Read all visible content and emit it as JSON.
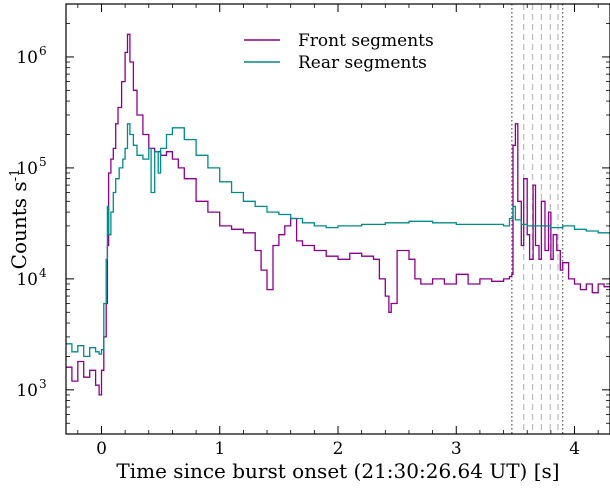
{
  "chart_data": {
    "type": "line",
    "xlabel": "Time since burst onset (21:30:26.64 UT) [s]",
    "ylabel": "Counts s",
    "ylabel_superscript": "-1",
    "x_scale": "linear",
    "y_scale": "log",
    "xlim": [
      -0.3,
      4.3
    ],
    "ylim": [
      400,
      3000000
    ],
    "x_ticks": [
      0,
      1,
      2,
      3,
      4
    ],
    "x_tick_labels": [
      "0",
      "1",
      "2",
      "3",
      "4"
    ],
    "y_ticks": [
      1000,
      10000,
      100000,
      1000000
    ],
    "y_tick_labels": [
      {
        "base": "10",
        "exp": "3"
      },
      {
        "base": "10",
        "exp": "4"
      },
      {
        "base": "10",
        "exp": "5"
      },
      {
        "base": "10",
        "exp": "6"
      }
    ],
    "legend_position": "top-center",
    "grid": false,
    "vertical_lines": [
      {
        "x": 3.47,
        "style": "dotted",
        "color": "#555555"
      },
      {
        "x": 3.57,
        "style": "dashed",
        "color": "#bbbbbb"
      },
      {
        "x": 3.645,
        "style": "dashed",
        "color": "#bbbbbb"
      },
      {
        "x": 3.72,
        "style": "dashed",
        "color": "#bbbbbb"
      },
      {
        "x": 3.795,
        "style": "dashed",
        "color": "#bbbbbb"
      },
      {
        "x": 3.86,
        "style": "dashed",
        "color": "#bbbbbb"
      },
      {
        "x": 3.9,
        "style": "dotted",
        "color": "#555555"
      }
    ],
    "series": [
      {
        "name": "Front segments",
        "color": "#8b008b",
        "x": [
          -0.3,
          -0.25,
          -0.2,
          -0.15,
          -0.1,
          -0.05,
          -0.02,
          0.0,
          0.02,
          0.04,
          0.05,
          0.06,
          0.08,
          0.1,
          0.12,
          0.14,
          0.17,
          0.2,
          0.22,
          0.24,
          0.27,
          0.3,
          0.35,
          0.4,
          0.45,
          0.5,
          0.55,
          0.6,
          0.65,
          0.7,
          0.8,
          0.9,
          1.0,
          1.1,
          1.2,
          1.3,
          1.35,
          1.4,
          1.45,
          1.5,
          1.55,
          1.6,
          1.65,
          1.7,
          1.8,
          1.9,
          2.0,
          2.1,
          2.2,
          2.3,
          2.35,
          2.4,
          2.43,
          2.45,
          2.5,
          2.6,
          2.65,
          2.7,
          2.8,
          2.9,
          3.0,
          3.1,
          3.2,
          3.3,
          3.4,
          3.45,
          3.47,
          3.48,
          3.5,
          3.52,
          3.55,
          3.57,
          3.6,
          3.62,
          3.65,
          3.67,
          3.7,
          3.72,
          3.75,
          3.78,
          3.8,
          3.82,
          3.85,
          3.88,
          3.9,
          3.95,
          4.0,
          4.05,
          4.1,
          4.15,
          4.2,
          4.25,
          4.3
        ],
        "y": [
          1600,
          1200,
          1800,
          1300,
          1500,
          1100,
          900,
          1500,
          3000,
          6000,
          20000,
          90000,
          120000,
          150000,
          250000,
          350000,
          600000,
          1100000,
          1600000,
          900000,
          500000,
          300000,
          200000,
          150000,
          140000,
          130000,
          140000,
          120000,
          100000,
          80000,
          50000,
          40000,
          30000,
          28000,
          26000,
          18000,
          12000,
          8000,
          20000,
          25000,
          30000,
          35000,
          22000,
          20000,
          18000,
          16000,
          15000,
          17000,
          16000,
          15000,
          10000,
          7000,
          5000,
          6000,
          18000,
          15000,
          10000,
          9000,
          10000,
          9000,
          11000,
          9000,
          10000,
          9500,
          10000,
          10500,
          11000,
          160000,
          250000,
          50000,
          20000,
          80000,
          25000,
          15000,
          70000,
          20000,
          15000,
          50000,
          18000,
          40000,
          15000,
          25000,
          18000,
          12000,
          14000,
          10000,
          9000,
          8000,
          9000,
          7500,
          9000,
          8500,
          9500
        ]
      },
      {
        "name": "Rear segments",
        "color": "#008b8b",
        "x": [
          -0.3,
          -0.25,
          -0.2,
          -0.15,
          -0.1,
          -0.05,
          -0.02,
          0.0,
          0.02,
          0.04,
          0.05,
          0.06,
          0.08,
          0.1,
          0.12,
          0.15,
          0.18,
          0.2,
          0.22,
          0.24,
          0.27,
          0.3,
          0.35,
          0.4,
          0.42,
          0.45,
          0.48,
          0.5,
          0.55,
          0.6,
          0.7,
          0.8,
          0.9,
          1.0,
          1.1,
          1.2,
          1.3,
          1.4,
          1.5,
          1.6,
          1.7,
          1.8,
          1.9,
          2.0,
          2.2,
          2.4,
          2.6,
          2.8,
          3.0,
          3.2,
          3.4,
          3.45,
          3.48,
          3.5,
          3.55,
          3.6,
          3.7,
          3.8,
          3.9,
          4.0,
          4.1,
          4.2,
          4.3
        ],
        "y": [
          2600,
          2200,
          2500,
          2000,
          2400,
          2200,
          2100,
          2300,
          6000,
          15000,
          45000,
          25000,
          40000,
          60000,
          80000,
          100000,
          120000,
          150000,
          250000,
          200000,
          160000,
          130000,
          120000,
          150000,
          60000,
          140000,
          90000,
          150000,
          200000,
          230000,
          180000,
          130000,
          100000,
          75000,
          60000,
          50000,
          45000,
          40000,
          38000,
          35000,
          32000,
          30000,
          29000,
          30000,
          31000,
          32000,
          33000,
          32000,
          31000,
          31000,
          30000,
          35000,
          45000,
          34000,
          31000,
          30000,
          30000,
          29000,
          30000,
          28000,
          27000,
          26000,
          25000
        ]
      }
    ]
  }
}
